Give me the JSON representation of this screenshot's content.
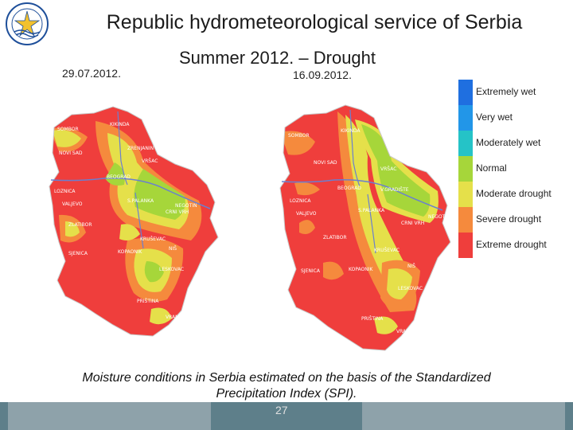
{
  "header": {
    "title": "Republic hydrometeorological service of Serbia",
    "subtitle": "Summer 2012. – Drought",
    "date_left": "29.07.2012.",
    "date_right": "16.09.2012."
  },
  "legend": {
    "items": [
      {
        "label": "Extremely wet",
        "color": "#1f6fe0"
      },
      {
        "label": "Very wet",
        "color": "#2296e8"
      },
      {
        "label": "Moderately wet",
        "color": "#25c3c7"
      },
      {
        "label": "Normal",
        "color": "#a6d63a"
      },
      {
        "label": "Moderate drought",
        "color": "#e5e04a"
      },
      {
        "label": "Severe drought",
        "color": "#f58a3d"
      },
      {
        "label": "Extreme drought",
        "color": "#ef3e3c"
      }
    ]
  },
  "map_left": {
    "cities": [
      "SOMBOR",
      "KIKINDA",
      "NOVI SAD",
      "ZRENJANIN",
      "VRŠAC",
      "LOZNICA",
      "BEOGRAD",
      "VALJEVO",
      "S.PALANKA",
      "NEGOTIN",
      "CRNI VRH",
      "ZLATIBOR",
      "KRUŠEVAC",
      "SJENICA",
      "KOPAONIK",
      "NIŠ",
      "LESKOVAC",
      "PRIŠTINA",
      "VRANJE"
    ]
  },
  "map_right": {
    "cities": [
      "SOMBOR",
      "KIKINDA",
      "NOVI SAD",
      "VRŠAC",
      "BEOGRAD",
      "V.GRADIŠTE",
      "LOZNICA",
      "S.PALANKA",
      "VALJEVO",
      "NEGOTIN",
      "CRNI VRH",
      "ZLATIBOR",
      "KRUŠEVAC",
      "NIŠ",
      "SJENICA",
      "KOPAONIK",
      "LESKOVAC",
      "PRIŠTINA",
      "VRANJE"
    ]
  },
  "caption": {
    "line1": "Moisture conditions in Serbia estimated on the basis of the Standardized",
    "line2": "Precipitation Index (SPI)."
  },
  "footer": {
    "page": "27"
  }
}
